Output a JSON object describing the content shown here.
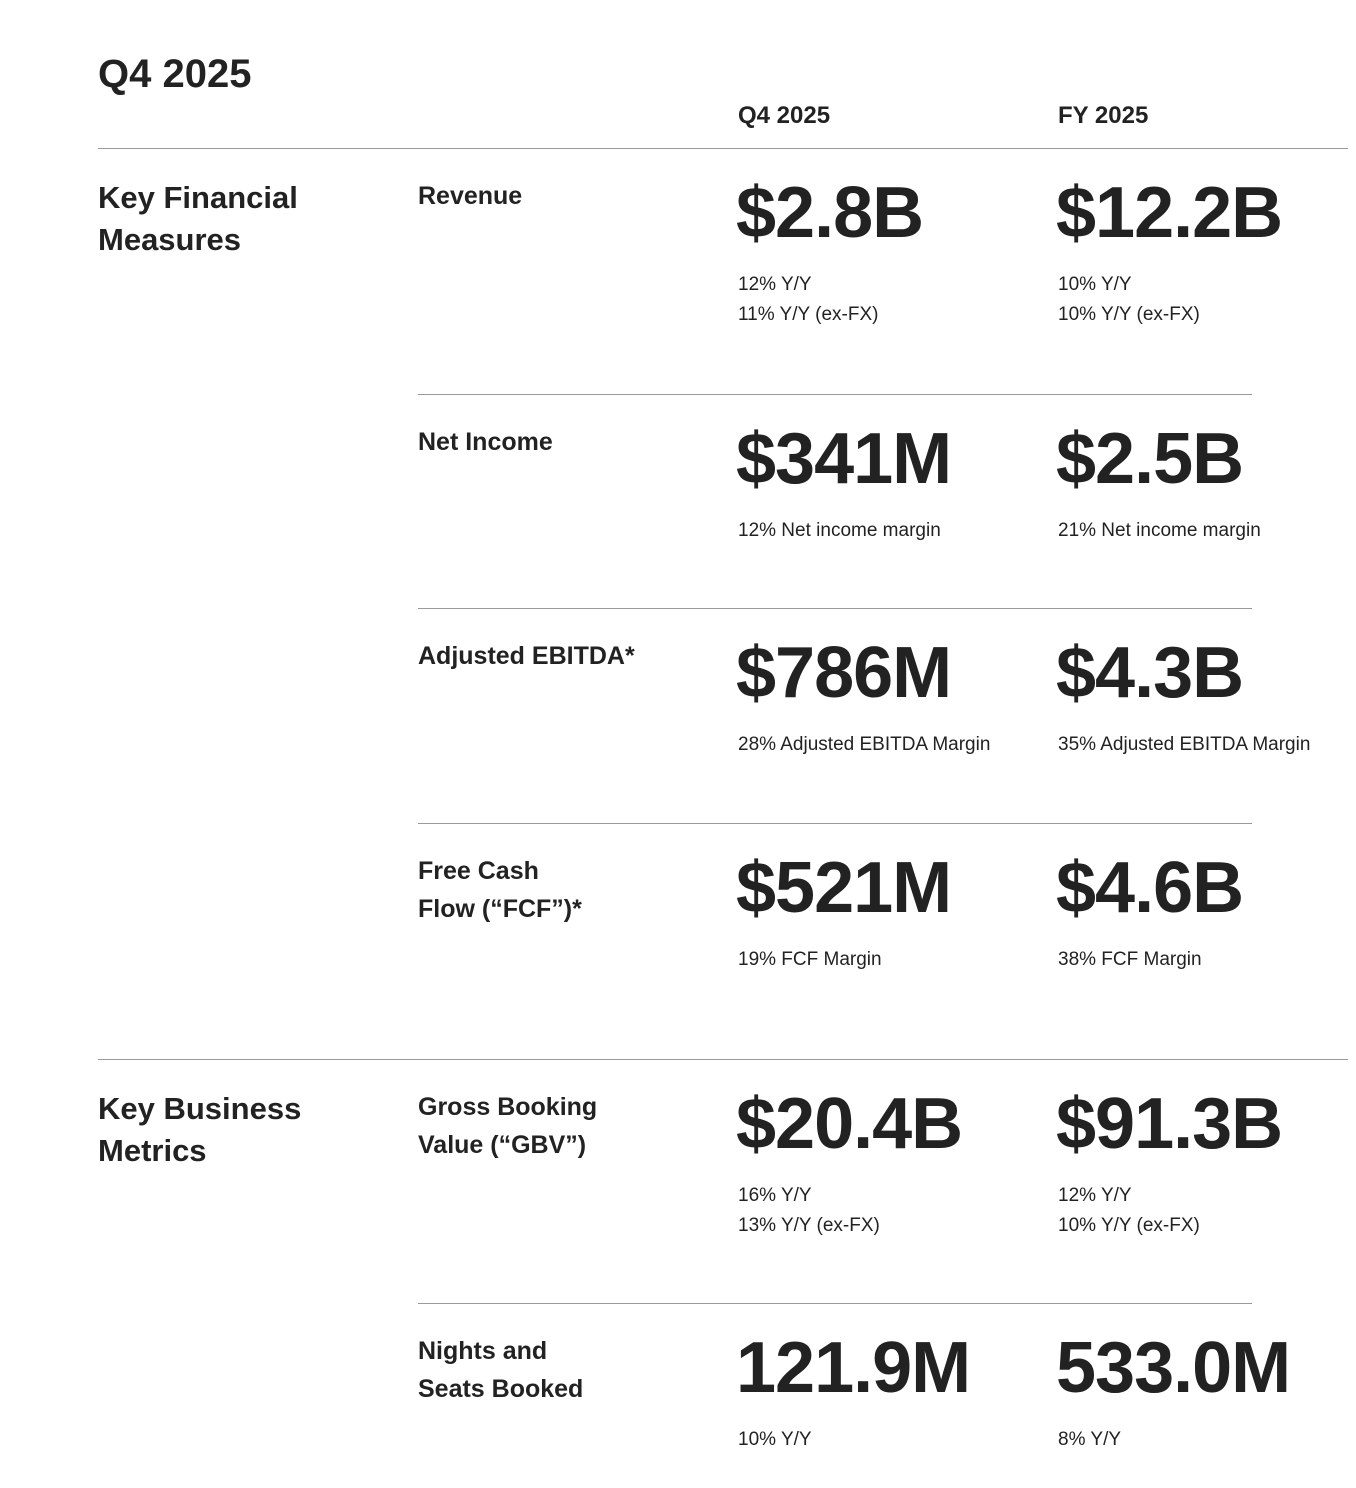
{
  "title": "Q4 2025",
  "columns": [
    "Q4 2025",
    "FY 2025"
  ],
  "sections": [
    {
      "title": "Key Financial Measures",
      "rows": [
        {
          "label": "Revenue",
          "cells": [
            {
              "value": "$2.8B",
              "notes": [
                "12% Y/Y",
                "11% Y/Y (ex-FX)"
              ]
            },
            {
              "value": "$12.2B",
              "notes": [
                "10% Y/Y",
                "10% Y/Y (ex-FX)"
              ]
            }
          ]
        },
        {
          "label": "Net Income",
          "cells": [
            {
              "value": "$341M",
              "notes": [
                "12% Net income margin"
              ]
            },
            {
              "value": "$2.5B",
              "notes": [
                "21% Net income margin"
              ]
            }
          ]
        },
        {
          "label": "Adjusted EBITDA*",
          "cells": [
            {
              "value": "$786M",
              "notes": [
                "28% Adjusted EBITDA Margin"
              ]
            },
            {
              "value": "$4.3B",
              "notes": [
                "35% Adjusted EBITDA Margin"
              ]
            }
          ]
        },
        {
          "label": "Free Cash Flow (“FCF”)*",
          "cells": [
            {
              "value": "$521M",
              "notes": [
                "19% FCF Margin"
              ]
            },
            {
              "value": "$4.6B",
              "notes": [
                "38% FCF Margin"
              ]
            }
          ]
        }
      ]
    },
    {
      "title": "Key Business Metrics",
      "rows": [
        {
          "label": "Gross Booking Value (“GBV”)",
          "cells": [
            {
              "value": "$20.4B",
              "notes": [
                "16% Y/Y",
                "13% Y/Y (ex-FX)"
              ]
            },
            {
              "value": "$91.3B",
              "notes": [
                "12% Y/Y",
                "10% Y/Y (ex-FX)"
              ]
            }
          ]
        },
        {
          "label": "Nights and Seats Booked",
          "cells": [
            {
              "value": "121.9M",
              "notes": [
                "10% Y/Y"
              ]
            },
            {
              "value": "533.0M",
              "notes": [
                "8% Y/Y"
              ]
            }
          ]
        }
      ]
    }
  ]
}
